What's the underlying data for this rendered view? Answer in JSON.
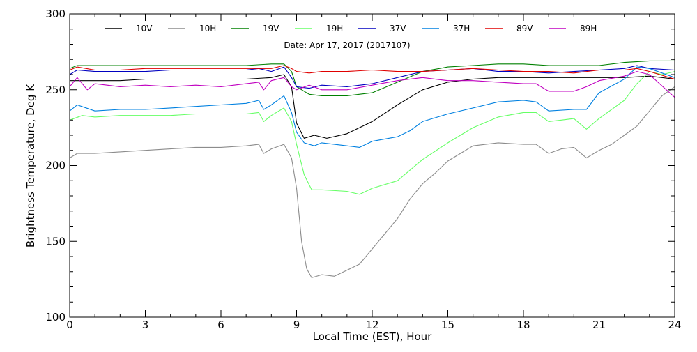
{
  "chart_data": {
    "type": "line",
    "title": "Date: Apr 17, 2017 (2017107)",
    "xlabel": "Local Time (EST), Hour",
    "ylabel": "Brightness Temperature, Deg K",
    "xlim": [
      0,
      24
    ],
    "ylim": [
      100,
      300
    ],
    "x_ticks": [
      0,
      3,
      6,
      9,
      12,
      15,
      18,
      21,
      24
    ],
    "x_tick_labels": [
      "0",
      "3",
      "6",
      "9",
      "12",
      "15",
      "18",
      "21",
      "24"
    ],
    "y_ticks": [
      100,
      150,
      200,
      250,
      300
    ],
    "y_tick_labels": [
      "100",
      "150",
      "200",
      "250",
      "300"
    ],
    "grid": false,
    "legend_position": "top",
    "series": [
      {
        "name": "10V",
        "color": "#000000",
        "points": [
          [
            0,
            256
          ],
          [
            1,
            256
          ],
          [
            2,
            256
          ],
          [
            3,
            257
          ],
          [
            4,
            257
          ],
          [
            5,
            257
          ],
          [
            6,
            257
          ],
          [
            7,
            257
          ],
          [
            8,
            258
          ],
          [
            8.5,
            260
          ],
          [
            8.8,
            252
          ],
          [
            9,
            228
          ],
          [
            9.3,
            218
          ],
          [
            9.7,
            220
          ],
          [
            10.2,
            218
          ],
          [
            11,
            221
          ],
          [
            12,
            229
          ],
          [
            13,
            240
          ],
          [
            14,
            250
          ],
          [
            15,
            255
          ],
          [
            16,
            257
          ],
          [
            17,
            258
          ],
          [
            18,
            258
          ],
          [
            19,
            258
          ],
          [
            20,
            258
          ],
          [
            21,
            258
          ],
          [
            22,
            258
          ],
          [
            23,
            259
          ],
          [
            24,
            257
          ]
        ]
      },
      {
        "name": "10H",
        "color": "#8c8c8c",
        "points": [
          [
            0,
            205
          ],
          [
            0.3,
            208
          ],
          [
            1,
            208
          ],
          [
            2,
            209
          ],
          [
            3,
            210
          ],
          [
            4,
            211
          ],
          [
            5,
            212
          ],
          [
            6,
            212
          ],
          [
            7,
            213
          ],
          [
            7.5,
            214
          ],
          [
            7.7,
            208
          ],
          [
            8,
            211
          ],
          [
            8.5,
            214
          ],
          [
            8.8,
            205
          ],
          [
            9,
            185
          ],
          [
            9.2,
            150
          ],
          [
            9.4,
            132
          ],
          [
            9.6,
            126
          ],
          [
            10,
            128
          ],
          [
            10.5,
            127
          ],
          [
            11,
            131
          ],
          [
            11.5,
            135
          ],
          [
            12,
            145
          ],
          [
            12.5,
            155
          ],
          [
            13,
            165
          ],
          [
            13.5,
            178
          ],
          [
            14,
            188
          ],
          [
            14.5,
            195
          ],
          [
            15,
            203
          ],
          [
            15.5,
            208
          ],
          [
            16,
            213
          ],
          [
            17,
            215
          ],
          [
            18,
            214
          ],
          [
            18.5,
            214
          ],
          [
            19,
            208
          ],
          [
            19.5,
            211
          ],
          [
            20,
            212
          ],
          [
            20.5,
            205
          ],
          [
            21,
            210
          ],
          [
            21.5,
            214
          ],
          [
            22,
            220
          ],
          [
            22.5,
            226
          ],
          [
            23,
            236
          ],
          [
            23.5,
            246
          ],
          [
            24,
            252
          ]
        ]
      },
      {
        "name": "19V",
        "color": "#008000",
        "points": [
          [
            0,
            264
          ],
          [
            0.3,
            266
          ],
          [
            1,
            266
          ],
          [
            2,
            266
          ],
          [
            3,
            266
          ],
          [
            4,
            266
          ],
          [
            5,
            266
          ],
          [
            6,
            266
          ],
          [
            7,
            266
          ],
          [
            8,
            267
          ],
          [
            8.5,
            267
          ],
          [
            8.8,
            262
          ],
          [
            9,
            252
          ],
          [
            9.5,
            247
          ],
          [
            10,
            246
          ],
          [
            11,
            246
          ],
          [
            12,
            248
          ],
          [
            13,
            255
          ],
          [
            14,
            262
          ],
          [
            15,
            265
          ],
          [
            16,
            266
          ],
          [
            17,
            267
          ],
          [
            18,
            267
          ],
          [
            19,
            266
          ],
          [
            20,
            266
          ],
          [
            21,
            266
          ],
          [
            22,
            268
          ],
          [
            23,
            269
          ],
          [
            24,
            269
          ]
        ]
      },
      {
        "name": "19H",
        "color": "#66ff66",
        "points": [
          [
            0,
            230
          ],
          [
            0.5,
            233
          ],
          [
            1,
            232
          ],
          [
            2,
            233
          ],
          [
            3,
            233
          ],
          [
            4,
            233
          ],
          [
            5,
            234
          ],
          [
            6,
            234
          ],
          [
            7,
            234
          ],
          [
            7.5,
            235
          ],
          [
            7.7,
            229
          ],
          [
            8,
            233
          ],
          [
            8.5,
            238
          ],
          [
            8.8,
            229
          ],
          [
            9,
            214
          ],
          [
            9.3,
            194
          ],
          [
            9.6,
            184
          ],
          [
            10,
            184
          ],
          [
            11,
            183
          ],
          [
            11.5,
            181
          ],
          [
            12,
            185
          ],
          [
            13,
            190
          ],
          [
            14,
            204
          ],
          [
            15,
            215
          ],
          [
            16,
            225
          ],
          [
            17,
            232
          ],
          [
            18,
            235
          ],
          [
            18.5,
            235
          ],
          [
            19,
            229
          ],
          [
            19.5,
            230
          ],
          [
            20,
            231
          ],
          [
            20.5,
            224
          ],
          [
            21,
            231
          ],
          [
            22,
            243
          ],
          [
            22.5,
            254
          ],
          [
            23,
            262
          ],
          [
            23.5,
            260
          ],
          [
            24,
            262
          ]
        ]
      },
      {
        "name": "37V",
        "color": "#0000c0",
        "points": [
          [
            0,
            260
          ],
          [
            0.3,
            263
          ],
          [
            1,
            262
          ],
          [
            2,
            262
          ],
          [
            3,
            262
          ],
          [
            4,
            263
          ],
          [
            5,
            263
          ],
          [
            6,
            263
          ],
          [
            7,
            263
          ],
          [
            7.5,
            264
          ],
          [
            8,
            262
          ],
          [
            8.5,
            265
          ],
          [
            8.8,
            258
          ],
          [
            9,
            252
          ],
          [
            9.5,
            251
          ],
          [
            10,
            253
          ],
          [
            11,
            252
          ],
          [
            12,
            254
          ],
          [
            13,
            258
          ],
          [
            14,
            262
          ],
          [
            15,
            263
          ],
          [
            16,
            264
          ],
          [
            17,
            262
          ],
          [
            18,
            262
          ],
          [
            19,
            261
          ],
          [
            20,
            262
          ],
          [
            21,
            263
          ],
          [
            22,
            264
          ],
          [
            22.5,
            266
          ],
          [
            23,
            264
          ],
          [
            24,
            263
          ]
        ]
      },
      {
        "name": "37H",
        "color": "#0080e0",
        "points": [
          [
            0,
            236
          ],
          [
            0.3,
            240
          ],
          [
            1,
            236
          ],
          [
            2,
            237
          ],
          [
            3,
            237
          ],
          [
            4,
            238
          ],
          [
            5,
            239
          ],
          [
            6,
            240
          ],
          [
            7,
            241
          ],
          [
            7.5,
            243
          ],
          [
            7.7,
            237
          ],
          [
            8,
            240
          ],
          [
            8.5,
            246
          ],
          [
            8.8,
            235
          ],
          [
            9,
            222
          ],
          [
            9.3,
            215
          ],
          [
            9.7,
            213
          ],
          [
            10,
            215
          ],
          [
            11,
            213
          ],
          [
            11.5,
            212
          ],
          [
            12,
            216
          ],
          [
            13,
            219
          ],
          [
            13.5,
            223
          ],
          [
            14,
            229
          ],
          [
            15,
            234
          ],
          [
            16,
            238
          ],
          [
            17,
            242
          ],
          [
            18,
            243
          ],
          [
            18.5,
            242
          ],
          [
            19,
            236
          ],
          [
            20,
            237
          ],
          [
            20.5,
            237
          ],
          [
            21,
            248
          ],
          [
            22,
            257
          ],
          [
            22.5,
            265
          ],
          [
            23,
            264
          ],
          [
            24,
            258
          ]
        ]
      },
      {
        "name": "89V",
        "color": "#e00000",
        "points": [
          [
            0,
            263
          ],
          [
            0.3,
            265
          ],
          [
            1,
            263
          ],
          [
            2,
            263
          ],
          [
            3,
            264
          ],
          [
            4,
            264
          ],
          [
            5,
            264
          ],
          [
            6,
            264
          ],
          [
            7,
            264
          ],
          [
            7.5,
            264
          ],
          [
            8,
            264
          ],
          [
            8.5,
            266
          ],
          [
            8.8,
            264
          ],
          [
            9,
            262
          ],
          [
            9.5,
            261
          ],
          [
            10,
            262
          ],
          [
            11,
            262
          ],
          [
            12,
            263
          ],
          [
            13,
            262
          ],
          [
            14,
            262
          ],
          [
            15,
            263
          ],
          [
            16,
            264
          ],
          [
            17,
            263
          ],
          [
            18,
            262
          ],
          [
            19,
            262
          ],
          [
            20,
            261
          ],
          [
            21,
            263
          ],
          [
            22,
            263
          ],
          [
            22.5,
            264
          ],
          [
            23,
            262
          ],
          [
            24,
            257
          ]
        ]
      },
      {
        "name": "89H",
        "color": "#c000c0",
        "points": [
          [
            0,
            252
          ],
          [
            0.3,
            258
          ],
          [
            0.7,
            250
          ],
          [
            1,
            254
          ],
          [
            2,
            252
          ],
          [
            3,
            253
          ],
          [
            4,
            252
          ],
          [
            5,
            253
          ],
          [
            6,
            252
          ],
          [
            7,
            254
          ],
          [
            7.5,
            255
          ],
          [
            7.7,
            250
          ],
          [
            8,
            256
          ],
          [
            8.5,
            258
          ],
          [
            8.8,
            252
          ],
          [
            9,
            250
          ],
          [
            9.5,
            253
          ],
          [
            10,
            250
          ],
          [
            11,
            250
          ],
          [
            12,
            253
          ],
          [
            13,
            256
          ],
          [
            14,
            258
          ],
          [
            15,
            256
          ],
          [
            16,
            256
          ],
          [
            17,
            255
          ],
          [
            18,
            254
          ],
          [
            18.5,
            254
          ],
          [
            19,
            249
          ],
          [
            20,
            249
          ],
          [
            20.5,
            252
          ],
          [
            21,
            256
          ],
          [
            22,
            259
          ],
          [
            22.5,
            262
          ],
          [
            23,
            260
          ],
          [
            24,
            245
          ]
        ]
      }
    ]
  }
}
